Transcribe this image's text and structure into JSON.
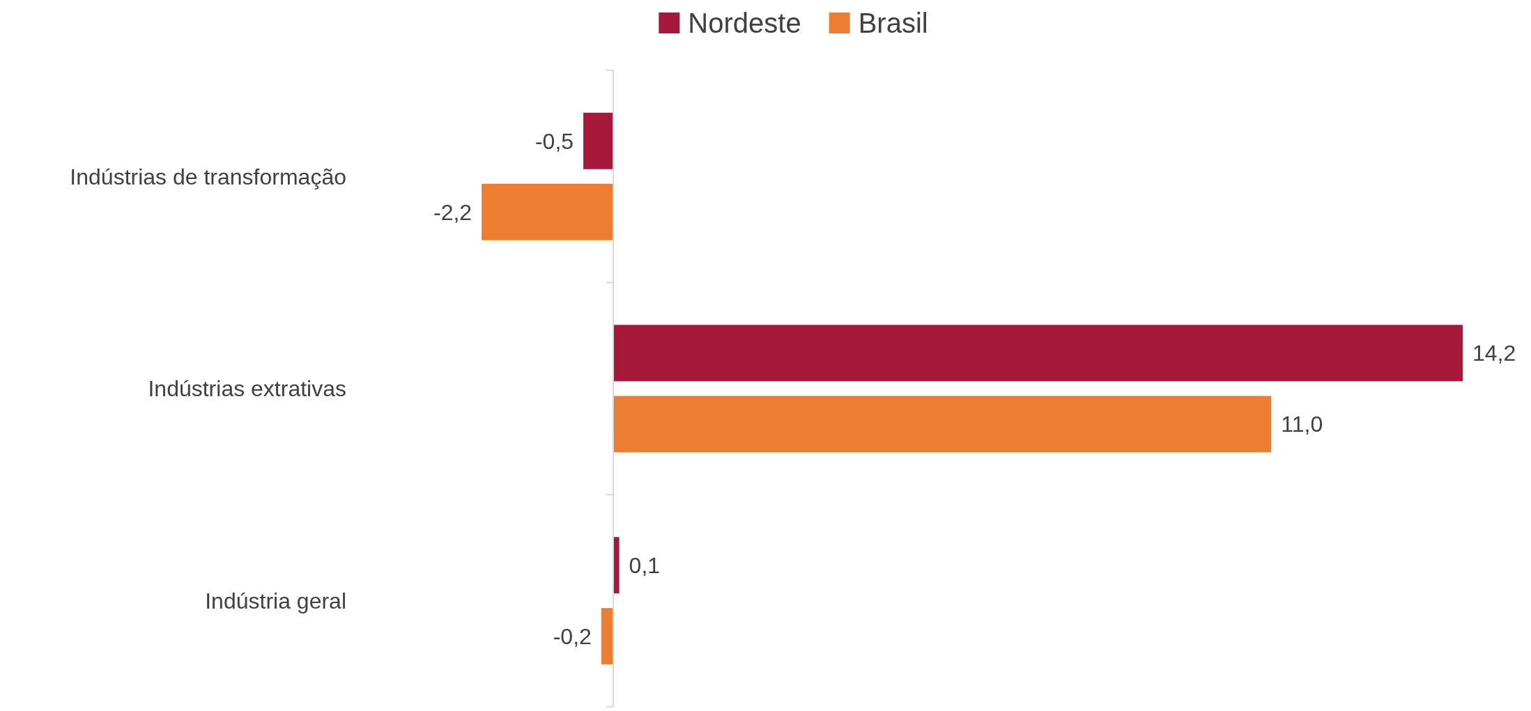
{
  "chart_data": {
    "type": "bar",
    "orientation": "horizontal",
    "categories": [
      "Indústrias de transformação",
      "Indústrias extrativas",
      "Indústria geral"
    ],
    "series": [
      {
        "name": "Nordeste",
        "color": "#a6193a",
        "values": [
          -0.5,
          14.2,
          0.1
        ],
        "value_labels": [
          "-0,5",
          "14,2",
          "0,1"
        ]
      },
      {
        "name": "Brasil",
        "color": "#ed7d31",
        "values": [
          -2.2,
          11.0,
          -0.2
        ],
        "value_labels": [
          "-2,2",
          "11,0",
          "-0,2"
        ]
      }
    ],
    "legend": "top",
    "tick_labels": "y"
  }
}
